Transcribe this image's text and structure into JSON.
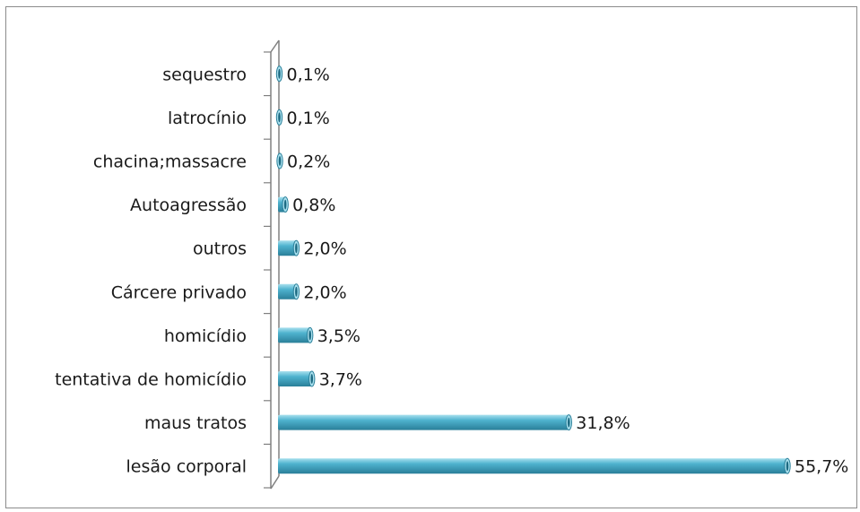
{
  "chart_data": {
    "type": "bar",
    "orientation": "horizontal",
    "categories": [
      "sequestro",
      "latrocínio",
      "chacina;massacre",
      "Autoagressão",
      "outros",
      "Cárcere privado",
      "homicídio",
      "tentativa de homicídio",
      "maus tratos",
      "lesão corporal"
    ],
    "values": [
      0.1,
      0.1,
      0.2,
      0.8,
      2.0,
      2.0,
      3.5,
      3.7,
      31.8,
      55.7
    ],
    "value_labels": [
      "0,1%",
      "0,1%",
      "0,2%",
      "0,8%",
      "2,0%",
      "2,0%",
      "3,5%",
      "3,7%",
      "31,8%",
      "55,7%"
    ],
    "title": "",
    "xlabel": "",
    "ylabel": "",
    "xlim": [
      0,
      55.7
    ],
    "grid": false,
    "legend": "none",
    "style": "3d-cylinder",
    "colors": {
      "bar": "#4fb3cf",
      "bar_light": "#a9e0ee",
      "bar_dark": "#2a7f99",
      "bar_cap": "#1d6a82",
      "axis": "#808080",
      "frame": "#8c8c8c"
    }
  }
}
